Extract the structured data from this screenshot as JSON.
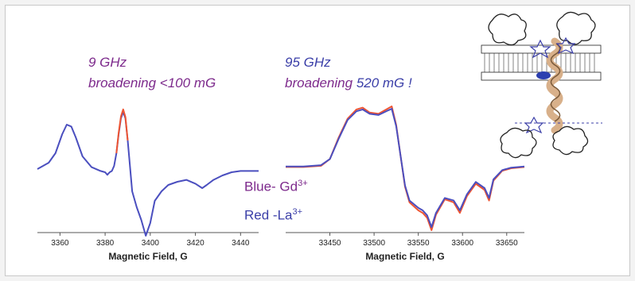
{
  "colors": {
    "purple_text": "#7d2a8c",
    "blue_text": "#3b3fa8",
    "blue_trace": "#4b4fbf",
    "red_trace": "#ee5533",
    "axis": "#555555"
  },
  "annotations": {
    "left_freq": "9 GHz",
    "left_broadening": "broadening <100 mG",
    "right_freq": "95 GHz",
    "right_broadening_prefix": "broadening ",
    "right_broadening_value": "520 mG !"
  },
  "legend": {
    "blue_label": "Blue- Gd",
    "blue_sup": "3+",
    "red_label": "Red -La",
    "red_sup": "3+"
  },
  "chart_data": [
    {
      "type": "line",
      "xlabel": "Magnetic Field, G",
      "ylabel": "",
      "xlim": [
        3350,
        3448
      ],
      "xticks": [
        "3360",
        "3380",
        "3400",
        "3420",
        "3440"
      ],
      "grid": false,
      "series": [
        {
          "color": "#4b4fbf",
          "x": [
            3350,
            3355,
            3358,
            3361,
            3363,
            3365,
            3367,
            3370,
            3374,
            3378,
            3380,
            3381,
            3382,
            3383,
            3384,
            3385,
            3386,
            3387,
            3388,
            3389,
            3390,
            3392,
            3394,
            3396,
            3398,
            3400,
            3402,
            3405,
            3408,
            3412,
            3416,
            3420,
            3423,
            3425,
            3428,
            3432,
            3436,
            3440,
            3444,
            3448
          ],
          "y": [
            0.05,
            0.15,
            0.3,
            0.6,
            0.75,
            0.72,
            0.55,
            0.25,
            0.08,
            0.02,
            0.0,
            -0.04,
            0.0,
            0.02,
            0.1,
            0.3,
            0.6,
            0.85,
            0.95,
            0.85,
            0.5,
            -0.3,
            -0.55,
            -0.75,
            -1.0,
            -0.8,
            -0.45,
            -0.3,
            -0.2,
            -0.15,
            -0.12,
            -0.18,
            -0.25,
            -0.2,
            -0.12,
            -0.05,
            0.0,
            0.02,
            0.02,
            0.02
          ]
        },
        {
          "color": "#ee5533",
          "x": [
            3385,
            3386,
            3387,
            3388,
            3389,
            3390
          ],
          "y": [
            0.3,
            0.62,
            0.88,
            0.99,
            0.87,
            0.5
          ]
        }
      ]
    },
    {
      "type": "line",
      "xlabel": "Magnetic Field, G",
      "ylabel": "",
      "xlim": [
        33400,
        33670
      ],
      "xticks": [
        "33450",
        "33500",
        "33550",
        "33600",
        "33650"
      ],
      "grid": false,
      "series": [
        {
          "color": "#ee5533",
          "x": [
            33400,
            33420,
            33440,
            33450,
            33460,
            33470,
            33480,
            33487,
            33495,
            33505,
            33515,
            33520,
            33525,
            33530,
            33535,
            33540,
            33550,
            33555,
            33560,
            33565,
            33570,
            33580,
            33590,
            33597,
            33605,
            33615,
            33625,
            33630,
            33635,
            33645,
            33655,
            33670
          ],
          "y": [
            0.02,
            0.02,
            0.04,
            0.15,
            0.5,
            0.8,
            0.95,
            0.98,
            0.9,
            0.88,
            0.96,
            1.0,
            0.7,
            0.2,
            -0.3,
            -0.55,
            -0.68,
            -0.72,
            -0.8,
            -1.0,
            -0.75,
            -0.5,
            -0.55,
            -0.72,
            -0.45,
            -0.25,
            -0.35,
            -0.52,
            -0.2,
            -0.04,
            0.0,
            0.02
          ]
        },
        {
          "color": "#4b4fbf",
          "x": [
            33400,
            33420,
            33440,
            33450,
            33460,
            33470,
            33480,
            33487,
            33495,
            33505,
            33515,
            33520,
            33525,
            33530,
            33535,
            33540,
            33550,
            33555,
            33560,
            33565,
            33570,
            33580,
            33590,
            33597,
            33605,
            33615,
            33625,
            33630,
            33635,
            33645,
            33655,
            33670
          ],
          "y": [
            0.03,
            0.03,
            0.05,
            0.15,
            0.48,
            0.78,
            0.92,
            0.95,
            0.88,
            0.86,
            0.93,
            0.96,
            0.68,
            0.2,
            -0.28,
            -0.52,
            -0.64,
            -0.68,
            -0.76,
            -0.95,
            -0.72,
            -0.48,
            -0.52,
            -0.68,
            -0.42,
            -0.22,
            -0.32,
            -0.48,
            -0.18,
            -0.03,
            0.01,
            0.03
          ]
        }
      ]
    }
  ]
}
